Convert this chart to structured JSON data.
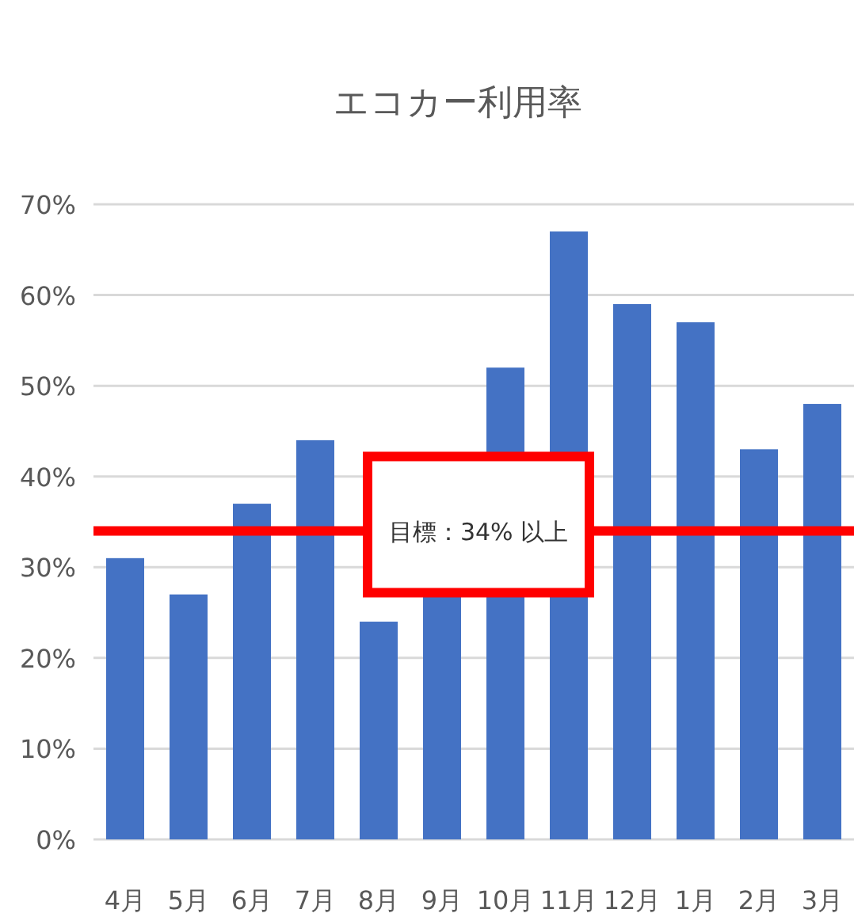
{
  "chart_data": {
    "type": "bar",
    "title": "エコカー利用率",
    "categories": [
      "4月",
      "5月",
      "6月",
      "7月",
      "8月",
      "9月",
      "10月",
      "11月",
      "12月",
      "1月",
      "2月",
      "3月"
    ],
    "values": [
      31,
      27,
      37,
      44,
      24,
      27,
      52,
      67,
      59,
      57,
      43,
      48
    ],
    "color": "#4472c4",
    "ylim": [
      0,
      70
    ],
    "yticks": [
      {
        "value": 0,
        "label": "0%"
      },
      {
        "value": 10,
        "label": "10%"
      },
      {
        "value": 20,
        "label": "20%"
      },
      {
        "value": 30,
        "label": "30%"
      },
      {
        "value": 40,
        "label": "40%"
      },
      {
        "value": 50,
        "label": "50%"
      },
      {
        "value": 60,
        "label": "60%"
      },
      {
        "value": 70,
        "label": "70%"
      }
    ],
    "grid": "y",
    "ref_lines": [
      {
        "axis": "y",
        "value": 34,
        "label": "目標：34% 以上",
        "color": "#ff0000"
      }
    ]
  }
}
